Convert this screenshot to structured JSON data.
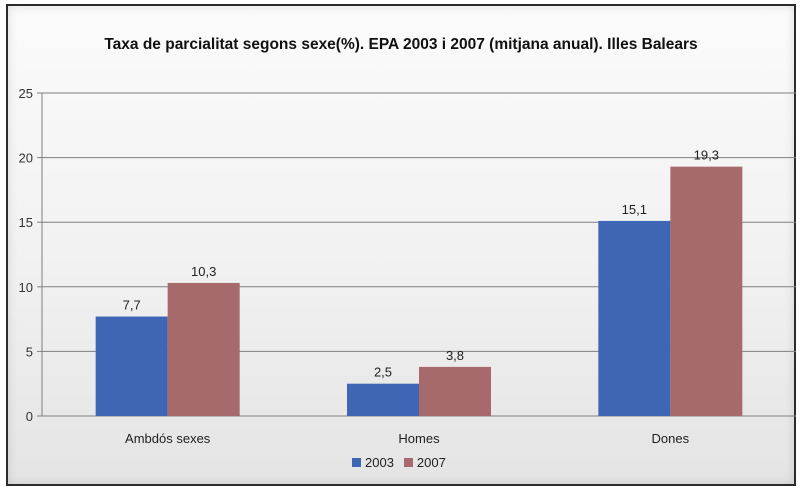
{
  "chart_data": {
    "type": "bar",
    "title": "Taxa de parcialitat segons sexe(%). EPA 2003 i 2007 (mitjana anual). Illes Balears",
    "categories": [
      "Ambdós sexes",
      "Homes",
      "Dones"
    ],
    "series": [
      {
        "name": "2003",
        "values": [
          7.7,
          2.5,
          15.1
        ],
        "labels": [
          "7,7",
          "2,5",
          "15,1"
        ],
        "color": "#3f66b4"
      },
      {
        "name": "2007",
        "values": [
          10.3,
          3.8,
          19.3
        ],
        "labels": [
          "10,3",
          "3,8",
          "19,3"
        ],
        "color": "#a66a6c"
      }
    ],
    "yticks": [
      0,
      5,
      10,
      15,
      20,
      25
    ],
    "ylim": [
      0,
      25
    ],
    "grid": true,
    "legend_position": "bottom-center"
  }
}
